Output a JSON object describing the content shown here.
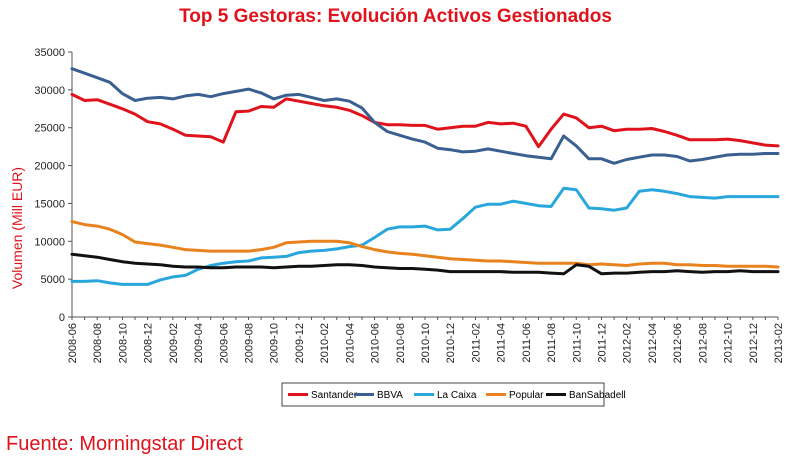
{
  "header": {
    "title": "Top 5 Gestoras: Evolución Activos Gestionados"
  },
  "footer": {
    "source": "Fuente: Morningstar Direct"
  },
  "chart_data": {
    "type": "line",
    "title": "Top 5 Gestoras: Evolución Activos Gestionados",
    "ylabel": "Volumen (Mill EUR)",
    "xlabel": "",
    "ylim": [
      0,
      35000
    ],
    "yticks": [
      0,
      5000,
      10000,
      15000,
      20000,
      25000,
      30000,
      35000
    ],
    "x_tick_labels": [
      "2008-06",
      "2008-08",
      "2008-10",
      "2008-12",
      "2009-02",
      "2009-04",
      "2009-06",
      "2009-08",
      "2009-10",
      "2009-12",
      "2010-02",
      "2010-04",
      "2010-06",
      "2010-08",
      "2010-10",
      "2010-12",
      "2011-02",
      "2011-04",
      "2011-06",
      "2011-08",
      "2011-10",
      "2011-12",
      "2012-02",
      "2012-04",
      "2012-06",
      "2012-08",
      "2012-10",
      "2012-12",
      "2013-02"
    ],
    "x": [
      "2008-06",
      "2008-07",
      "2008-08",
      "2008-09",
      "2008-10",
      "2008-11",
      "2008-12",
      "2009-01",
      "2009-02",
      "2009-03",
      "2009-04",
      "2009-05",
      "2009-06",
      "2009-07",
      "2009-08",
      "2009-09",
      "2009-10",
      "2009-11",
      "2009-12",
      "2010-01",
      "2010-02",
      "2010-03",
      "2010-04",
      "2010-05",
      "2010-06",
      "2010-07",
      "2010-08",
      "2010-09",
      "2010-10",
      "2010-11",
      "2010-12",
      "2011-01",
      "2011-02",
      "2011-03",
      "2011-04",
      "2011-05",
      "2011-06",
      "2011-07",
      "2011-08",
      "2011-09",
      "2011-10",
      "2011-11",
      "2011-12",
      "2012-01",
      "2012-02",
      "2012-03",
      "2012-04",
      "2012-05",
      "2012-06",
      "2012-07",
      "2012-08",
      "2012-09",
      "2012-10",
      "2012-11",
      "2012-12",
      "2013-01",
      "2013-02"
    ],
    "series": [
      {
        "name": "Santander",
        "color": "#e0121b",
        "values": [
          29400,
          28600,
          28700,
          28100,
          27500,
          26800,
          25800,
          25500,
          24800,
          24000,
          23900,
          23800,
          23100,
          27100,
          27200,
          27800,
          27700,
          28800,
          28500,
          28200,
          27900,
          27700,
          27300,
          26600,
          25700,
          25400,
          25400,
          25300,
          25300,
          24800,
          25000,
          25200,
          25200,
          25700,
          25500,
          25600,
          25200,
          22500,
          24800,
          26800,
          26300,
          25000,
          25200,
          24600,
          24800,
          24800,
          24900,
          24500,
          24000,
          23400,
          23400,
          23400,
          23500,
          23300,
          23000,
          22700,
          22600
        ]
      },
      {
        "name": "BBVA",
        "color": "#3a5f91",
        "values": [
          32800,
          32200,
          31600,
          31000,
          29500,
          28600,
          28900,
          29000,
          28800,
          29200,
          29400,
          29100,
          29500,
          29800,
          30100,
          29600,
          28800,
          29300,
          29400,
          29000,
          28600,
          28800,
          28500,
          27600,
          25700,
          24500,
          24000,
          23500,
          23100,
          22300,
          22100,
          21800,
          21900,
          22200,
          21900,
          21600,
          21300,
          21100,
          20900,
          23900,
          22600,
          20900,
          20900,
          20300,
          20800,
          21100,
          21400,
          21400,
          21200,
          20600,
          20800,
          21100,
          21400,
          21500,
          21500,
          21600,
          21600
        ]
      },
      {
        "name": "La Caixa",
        "color": "#29a7dc",
        "values": [
          4700,
          4700,
          4800,
          4500,
          4300,
          4300,
          4300,
          4900,
          5300,
          5500,
          6300,
          6800,
          7100,
          7300,
          7400,
          7800,
          7900,
          8000,
          8500,
          8700,
          8800,
          9000,
          9300,
          9500,
          10500,
          11600,
          11900,
          11900,
          12000,
          11500,
          11600,
          13000,
          14500,
          14900,
          14900,
          15300,
          15000,
          14700,
          14600,
          17000,
          16800,
          14400,
          14300,
          14100,
          14400,
          16600,
          16800,
          16600,
          16300,
          15900,
          15800,
          15700,
          15900,
          15900,
          15900,
          15900,
          15900
        ]
      },
      {
        "name": "Popular",
        "color": "#e8821e",
        "values": [
          12600,
          12200,
          12000,
          11600,
          10900,
          9900,
          9700,
          9500,
          9200,
          8900,
          8800,
          8700,
          8700,
          8700,
          8700,
          8900,
          9200,
          9800,
          9900,
          10000,
          10000,
          10000,
          9800,
          9300,
          8900,
          8600,
          8400,
          8300,
          8100,
          7900,
          7700,
          7600,
          7500,
          7400,
          7400,
          7300,
          7200,
          7100,
          7100,
          7100,
          7100,
          6900,
          7000,
          6900,
          6800,
          7000,
          7100,
          7100,
          6900,
          6900,
          6800,
          6800,
          6700,
          6700,
          6700,
          6700,
          6600
        ]
      },
      {
        "name": "BanSabadell",
        "color": "#111111",
        "values": [
          8300,
          8100,
          7900,
          7600,
          7300,
          7100,
          7000,
          6900,
          6700,
          6600,
          6600,
          6500,
          6500,
          6600,
          6600,
          6600,
          6500,
          6600,
          6700,
          6700,
          6800,
          6900,
          6900,
          6800,
          6600,
          6500,
          6400,
          6400,
          6300,
          6200,
          6000,
          6000,
          6000,
          6000,
          6000,
          5900,
          5900,
          5900,
          5800,
          5700,
          6900,
          6700,
          5700,
          5800,
          5800,
          5900,
          6000,
          6000,
          6100,
          6000,
          5900,
          6000,
          6000,
          6100,
          6000,
          6000,
          6000
        ]
      }
    ],
    "legend_position": "bottom",
    "grid": false
  }
}
